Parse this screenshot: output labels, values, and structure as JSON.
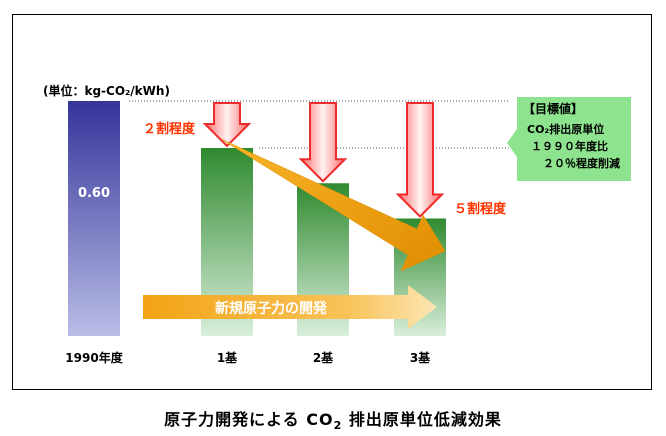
{
  "chart_data": {
    "type": "bar",
    "unit_label": "(単位：kg-CO₂/kWh)",
    "categories": [
      "1990年度",
      "1基",
      "2基",
      "3基"
    ],
    "values": [
      0.6,
      0.48,
      0.39,
      0.3
    ],
    "ylim": [
      0,
      0.6
    ],
    "value_labels": [
      "0.60",
      "",
      "",
      ""
    ],
    "annotations": {
      "first_step": "２割程度",
      "final_step": "５割程度",
      "arrow_text": "新規原子力の開発"
    },
    "target_box": {
      "title": "【目標値】",
      "lines": [
        "CO₂排出原単位",
        "１９９０年度比",
        "２０％程度削減"
      ]
    },
    "colors": {
      "base_bar": "#34349a",
      "plant_bar": "#2f8a2f",
      "down_arrow": "#ee2b2b",
      "trend_arrow": "#f3a315",
      "target_box": "#8ee48e",
      "annotation_text": "#ff3300"
    }
  },
  "caption": {
    "main": "原子力開発による CO",
    "sub": "2",
    "tail": " 排出原単位低減効果"
  }
}
